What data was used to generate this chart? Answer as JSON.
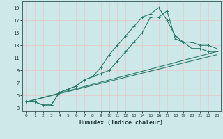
{
  "xlabel": "Humidex (Indice chaleur)",
  "bg_color": "#cce8e8",
  "grid_color": "#b8d8d8",
  "line_color": "#2a7a6a",
  "xlim": [
    -0.5,
    23.5
  ],
  "ylim": [
    2.5,
    20.0
  ],
  "xticks": [
    0,
    1,
    2,
    3,
    4,
    5,
    6,
    7,
    8,
    9,
    10,
    11,
    12,
    13,
    14,
    15,
    16,
    17,
    18,
    19,
    20,
    21,
    22,
    23
  ],
  "yticks": [
    3,
    5,
    7,
    9,
    11,
    13,
    15,
    17,
    19
  ],
  "line1_x": [
    0,
    1,
    2,
    3,
    4,
    5,
    6,
    7,
    8,
    9,
    10,
    11,
    12,
    13,
    14,
    15,
    16,
    17,
    18,
    19,
    20,
    21,
    22,
    23
  ],
  "line1_y": [
    4.0,
    4.0,
    3.5,
    3.5,
    5.5,
    6.0,
    6.5,
    7.5,
    8.0,
    9.5,
    11.5,
    13.0,
    14.5,
    16.0,
    17.5,
    18.0,
    19.0,
    17.0,
    14.5,
    13.5,
    13.5,
    13.0,
    13.0,
    12.5
  ],
  "line2_x": [
    0,
    1,
    2,
    3,
    4,
    5,
    6,
    7,
    8,
    9,
    10,
    11,
    12,
    13,
    14,
    15,
    16,
    17,
    18,
    19,
    20,
    21,
    22,
    23
  ],
  "line2_y": [
    4.0,
    4.0,
    3.5,
    3.5,
    5.5,
    6.0,
    6.5,
    7.5,
    8.0,
    8.5,
    9.0,
    10.5,
    12.0,
    13.5,
    15.0,
    17.5,
    17.5,
    18.5,
    14.0,
    13.5,
    12.5,
    12.5,
    12.0,
    12.0
  ],
  "line3_x": [
    0,
    23
  ],
  "line3_y": [
    4.0,
    12.0
  ],
  "line4_x": [
    0,
    23
  ],
  "line4_y": [
    4.0,
    11.5
  ]
}
